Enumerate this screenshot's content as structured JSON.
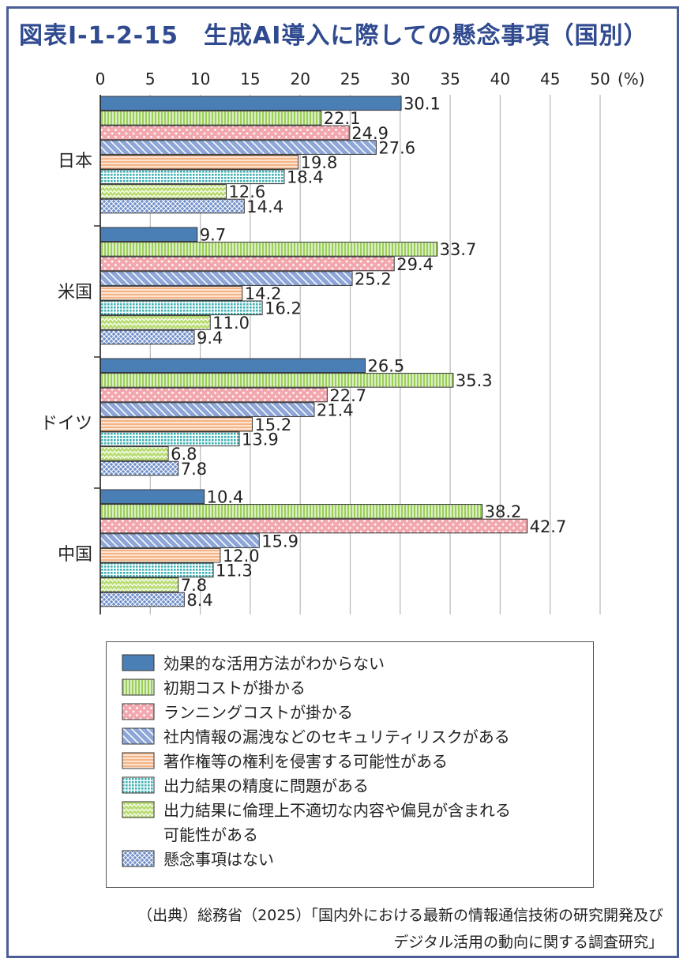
{
  "figure": {
    "number": "図表Ⅰ-1-2-15",
    "title": "生成AI導入に際しての懸念事項（国別）"
  },
  "source": {
    "line1": "（出典）総務省（2025）「国内外における最新の情報通信技術の研究開発及び",
    "line2": "デジタル活用の動向に関する調査研究」"
  },
  "chart_data": {
    "type": "bar",
    "orientation": "horizontal",
    "categories": [
      "日本",
      "米国",
      "ドイツ",
      "中国"
    ],
    "xlim": [
      0,
      50
    ],
    "x_ticks": [
      "0",
      "5",
      "10",
      "15",
      "20",
      "25",
      "30",
      "35",
      "40",
      "45",
      "50"
    ],
    "unit_label": "(%)",
    "grid": true,
    "legend_position": "bottom",
    "series": [
      {
        "name": "効果的な活用方法がわからない",
        "values": [
          30.1,
          9.7,
          26.5,
          10.4
        ],
        "color": "#4a7fb6",
        "pattern": "solid"
      },
      {
        "name": "初期コストが掛かる",
        "values": [
          22.1,
          33.7,
          35.3,
          38.2
        ],
        "color": "#9bcf5a",
        "pattern": "vertical-stripes"
      },
      {
        "name": "ランニングコストが掛かる",
        "values": [
          24.9,
          29.4,
          22.7,
          42.7
        ],
        "color": "#f3a7ae",
        "pattern": "dots"
      },
      {
        "name": "社内情報の漏洩などのセキュリティリスクがある",
        "values": [
          27.6,
          25.2,
          21.4,
          15.9
        ],
        "color": "#8ea7d8",
        "pattern": "diagonal-stripes"
      },
      {
        "name": "著作権等の権利を侵害する可能性がある",
        "values": [
          19.8,
          14.2,
          15.2,
          12.0
        ],
        "color": "#f6b485",
        "pattern": "horizontal-stripes"
      },
      {
        "name": "出力結果の精度に問題がある",
        "values": [
          18.4,
          16.2,
          13.9,
          11.3
        ],
        "color": "#5ec4c6",
        "pattern": "grid-dots"
      },
      {
        "name": "出力結果に倫理上不適切な内容や偏見が含まれる可能性がある",
        "legend_lines": [
          "出力結果に倫理上不適切な内容や偏見が含まれる",
          "可能性がある"
        ],
        "values": [
          12.6,
          11.0,
          6.8,
          7.8
        ],
        "color": "#b9dc73",
        "pattern": "zigzag"
      },
      {
        "name": "懸念事項はない",
        "values": [
          14.4,
          9.4,
          7.8,
          8.4
        ],
        "color": "#6f8fc9",
        "pattern": "crosshatch"
      }
    ]
  }
}
